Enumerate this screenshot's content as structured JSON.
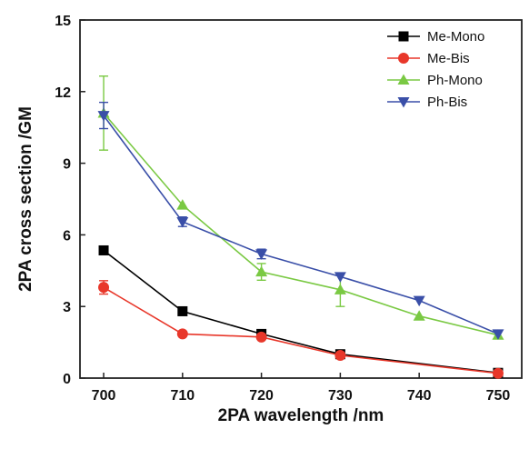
{
  "chart_data": {
    "type": "line",
    "title": "",
    "xlabel": "2PA wavelength /nm",
    "ylabel": "2PA cross section /GM",
    "xlim": [
      697,
      753
    ],
    "ylim": [
      0,
      15
    ],
    "xticks": [
      700,
      710,
      720,
      730,
      740,
      750
    ],
    "yticks": [
      0,
      3,
      6,
      9,
      12,
      15
    ],
    "grid": false,
    "legend_position": "top-right",
    "series": [
      {
        "name": "Me-Mono",
        "color": "#000000",
        "marker": "square",
        "x": [
          700,
          710,
          720,
          730,
          750
        ],
        "y": [
          5.35,
          2.8,
          1.85,
          1.0,
          0.22
        ],
        "err": [
          0,
          0,
          0,
          0.08,
          0
        ]
      },
      {
        "name": "Me-Bis",
        "color": "#e8372a",
        "marker": "circle",
        "x": [
          700,
          710,
          720,
          730,
          750
        ],
        "y": [
          3.8,
          1.85,
          1.72,
          0.95,
          0.2
        ],
        "err": [
          0.28,
          0,
          0,
          0.08,
          0.05
        ]
      },
      {
        "name": "Ph-Mono",
        "color": "#7ac943",
        "marker": "triangle-up",
        "x": [
          700,
          710,
          720,
          730,
          740,
          750
        ],
        "y": [
          11.1,
          7.25,
          4.45,
          3.7,
          2.6,
          1.8
        ],
        "err": [
          1.55,
          0,
          0.35,
          0.7,
          0,
          0
        ]
      },
      {
        "name": "Ph-Bis",
        "color": "#3a4fa8",
        "marker": "triangle-down",
        "x": [
          700,
          710,
          720,
          730,
          740,
          750
        ],
        "y": [
          11.0,
          6.55,
          5.2,
          4.25,
          3.25,
          1.85
        ],
        "err": [
          0.55,
          0.2,
          0.2,
          0,
          0,
          0
        ]
      }
    ]
  }
}
